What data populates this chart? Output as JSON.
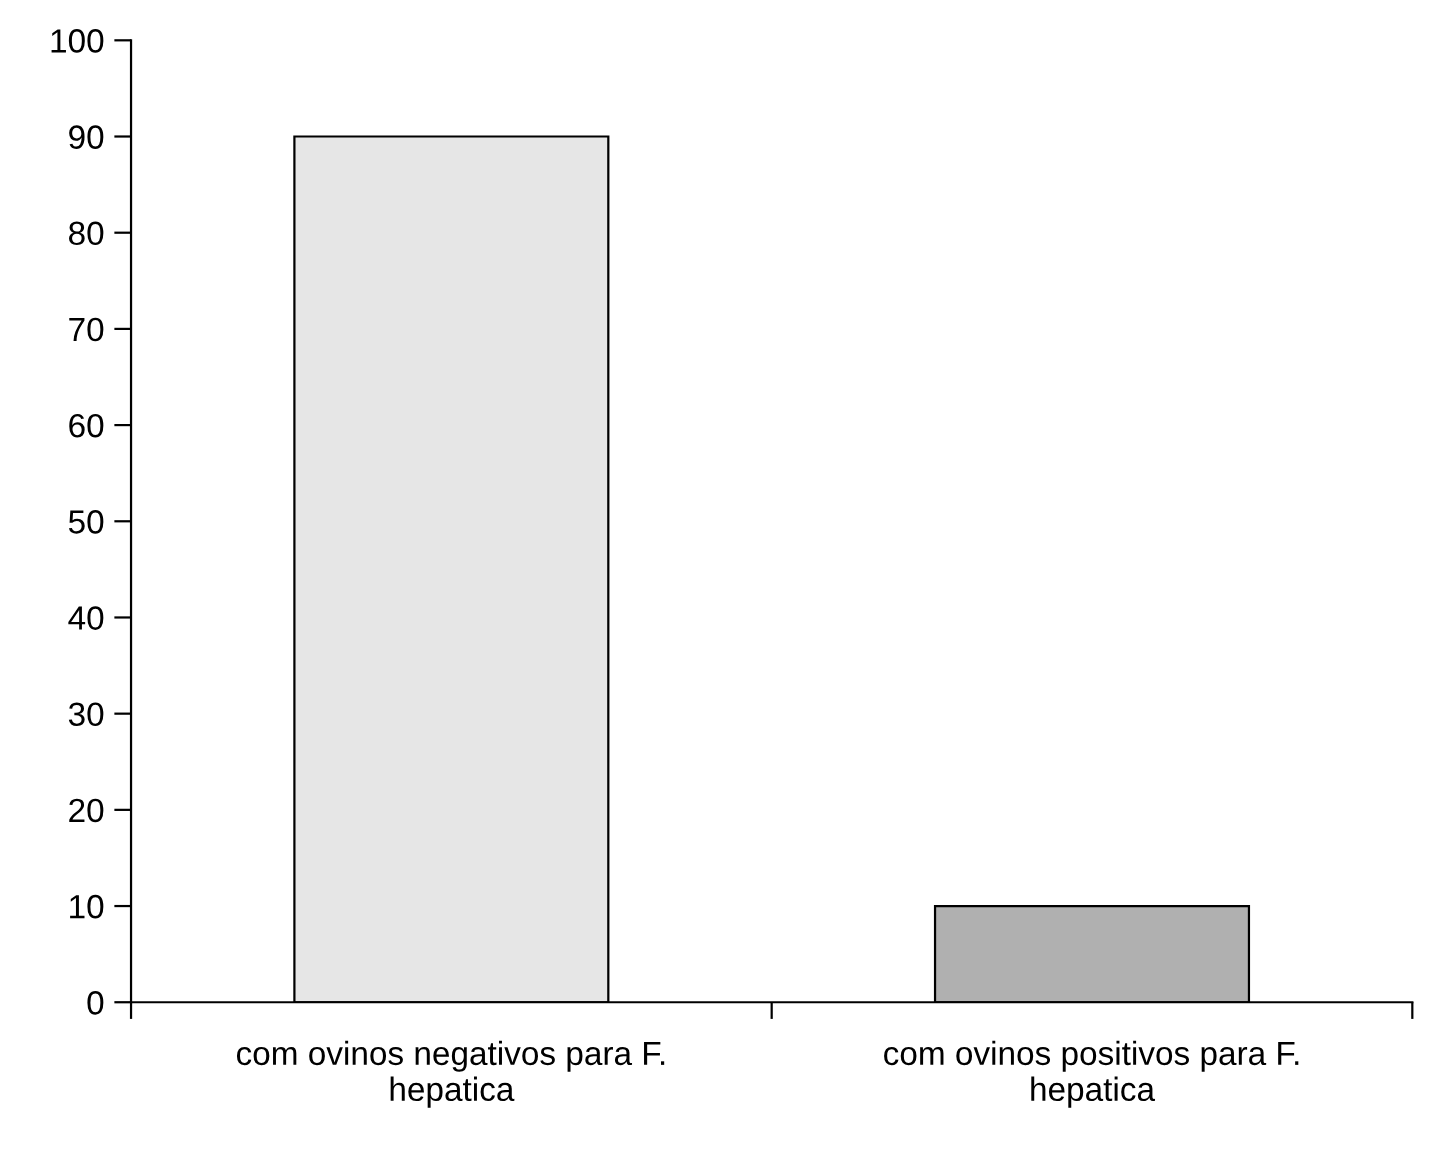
{
  "chart_data": {
    "type": "bar",
    "categories": [
      "com ovinos negativos para F.\nhepatica",
      "com ovinos positivos para F.\nhepatica"
    ],
    "values": [
      90,
      10
    ],
    "colors": [
      "#e6e6e6",
      "#b0b0b0"
    ],
    "ylim": [
      0,
      100
    ],
    "yticks": [
      0,
      10,
      20,
      30,
      40,
      50,
      60,
      70,
      80,
      90,
      100
    ],
    "grid": false,
    "legend": false
  }
}
